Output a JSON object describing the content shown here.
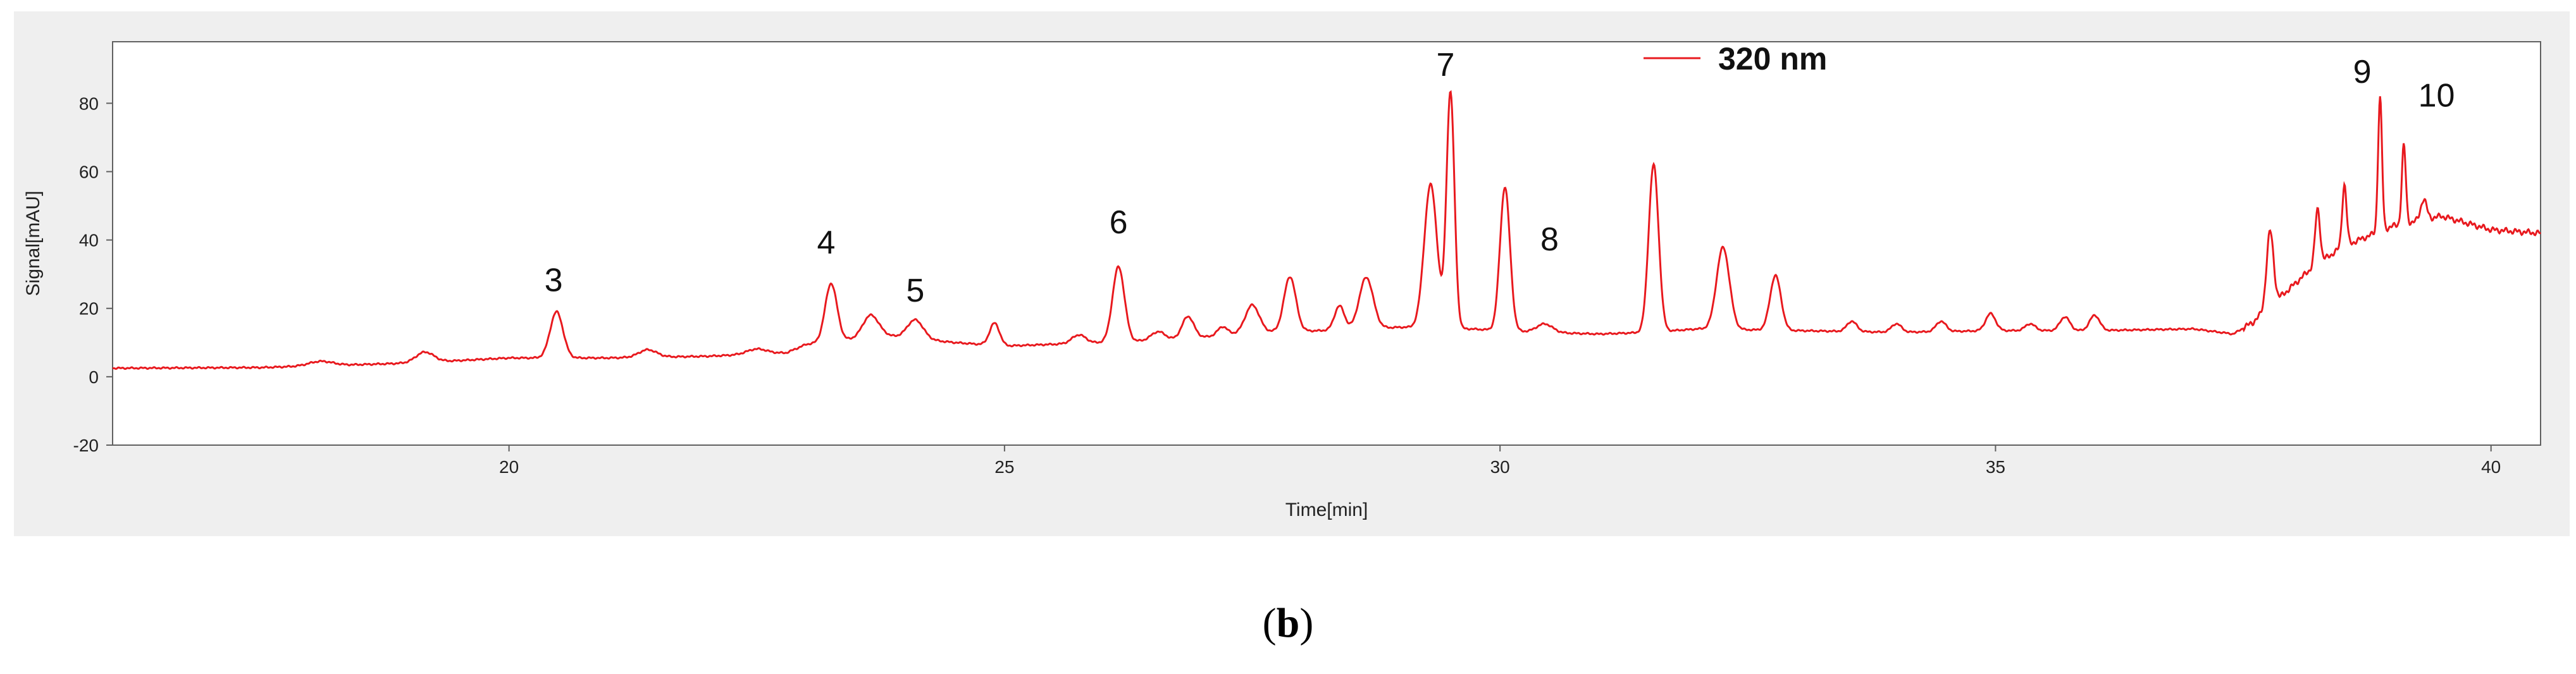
{
  "chart_data": {
    "type": "line",
    "title": "",
    "xlabel": "Time[min]",
    "ylabel": "Signal[mAU]",
    "xlim": [
      16.0,
      40.5
    ],
    "ylim": [
      -20,
      98
    ],
    "xticks": [
      20,
      25,
      30,
      35,
      40
    ],
    "yticks": [
      -20,
      0,
      20,
      40,
      60,
      80
    ],
    "grid": false,
    "legend": {
      "position": "top-center",
      "entries": [
        "320 nm"
      ]
    },
    "series": [
      {
        "name": "320 nm",
        "color": "#e8191e",
        "baseline": [
          [
            16.0,
            2.5
          ],
          [
            17.5,
            2.7
          ],
          [
            19.0,
            4.0
          ],
          [
            20.0,
            5.5
          ],
          [
            21.0,
            5.5
          ],
          [
            22.0,
            6.0
          ],
          [
            22.8,
            7.0
          ],
          [
            23.0,
            9.5
          ],
          [
            23.8,
            12.0
          ],
          [
            24.5,
            10.0
          ],
          [
            25.0,
            9.0
          ],
          [
            26.0,
            10.0
          ],
          [
            26.8,
            11.0
          ],
          [
            27.5,
            13.0
          ],
          [
            28.2,
            13.5
          ],
          [
            29.0,
            14.5
          ],
          [
            29.7,
            14.0
          ],
          [
            30.4,
            13.0
          ],
          [
            31.0,
            12.5
          ],
          [
            31.5,
            13.0
          ],
          [
            32.0,
            14.0
          ],
          [
            33.0,
            13.5
          ],
          [
            34.0,
            13.0
          ],
          [
            35.0,
            13.5
          ],
          [
            36.0,
            13.5
          ],
          [
            37.0,
            14.0
          ],
          [
            37.4,
            12.5
          ],
          [
            37.6,
            16.0
          ],
          [
            37.9,
            24.0
          ],
          [
            38.2,
            32.0
          ],
          [
            38.5,
            38.0
          ],
          [
            39.0,
            44.0
          ],
          [
            39.5,
            47.0
          ],
          [
            40.0,
            43.0
          ],
          [
            40.5,
            42.0
          ]
        ],
        "peaks": [
          {
            "t": 18.1,
            "h": 1.3,
            "w": 0.12
          },
          {
            "t": 19.15,
            "h": 3.0,
            "w": 0.09
          },
          {
            "t": 20.48,
            "h": 13.5,
            "w": 0.065
          },
          {
            "t": 21.4,
            "h": 2.2,
            "w": 0.09
          },
          {
            "t": 22.5,
            "h": 1.5,
            "w": 0.1
          },
          {
            "t": 23.25,
            "h": 17.0,
            "w": 0.06
          },
          {
            "t": 23.65,
            "h": 6.5,
            "w": 0.08
          },
          {
            "t": 24.1,
            "h": 5.5,
            "w": 0.08
          },
          {
            "t": 24.9,
            "h": 6.5,
            "w": 0.05
          },
          {
            "t": 25.75,
            "h": 2.5,
            "w": 0.07
          },
          {
            "t": 26.15,
            "h": 22.0,
            "w": 0.06
          },
          {
            "t": 26.55,
            "h": 2.5,
            "w": 0.07
          },
          {
            "t": 26.85,
            "h": 6.5,
            "w": 0.06
          },
          {
            "t": 27.2,
            "h": 2.5,
            "w": 0.05
          },
          {
            "t": 27.5,
            "h": 8.0,
            "w": 0.07
          },
          {
            "t": 27.88,
            "h": 16.0,
            "w": 0.06
          },
          {
            "t": 28.38,
            "h": 7.0,
            "w": 0.05
          },
          {
            "t": 28.65,
            "h": 15.0,
            "w": 0.07
          },
          {
            "t": 29.3,
            "h": 42.0,
            "w": 0.065
          },
          {
            "t": 29.5,
            "h": 69.0,
            "w": 0.04
          },
          {
            "t": 30.05,
            "h": 42.0,
            "w": 0.05
          },
          {
            "t": 30.45,
            "h": 2.5,
            "w": 0.08
          },
          {
            "t": 31.55,
            "h": 49.0,
            "w": 0.05
          },
          {
            "t": 32.25,
            "h": 24.0,
            "w": 0.065
          },
          {
            "t": 32.78,
            "h": 16.0,
            "w": 0.055
          },
          {
            "t": 33.55,
            "h": 3.0,
            "w": 0.05
          },
          {
            "t": 34.0,
            "h": 2.5,
            "w": 0.05
          },
          {
            "t": 34.45,
            "h": 3.0,
            "w": 0.05
          },
          {
            "t": 34.95,
            "h": 5.0,
            "w": 0.05
          },
          {
            "t": 35.35,
            "h": 2.0,
            "w": 0.05
          },
          {
            "t": 35.7,
            "h": 4.0,
            "w": 0.05
          },
          {
            "t": 36.0,
            "h": 4.5,
            "w": 0.05
          },
          {
            "t": 37.77,
            "h": 22.0,
            "w": 0.035
          },
          {
            "t": 38.25,
            "h": 16.0,
            "w": 0.025
          },
          {
            "t": 38.52,
            "h": 18.0,
            "w": 0.022
          },
          {
            "t": 38.88,
            "h": 39.0,
            "w": 0.02
          },
          {
            "t": 39.12,
            "h": 23.0,
            "w": 0.02
          },
          {
            "t": 39.32,
            "h": 6.0,
            "w": 0.03
          }
        ]
      }
    ],
    "annotations": [
      {
        "label": "3",
        "x": 20.45,
        "y": 25
      },
      {
        "label": "4",
        "x": 23.2,
        "y": 36
      },
      {
        "label": "5",
        "x": 24.1,
        "y": 22
      },
      {
        "label": "6",
        "x": 26.15,
        "y": 42
      },
      {
        "label": "7",
        "x": 29.45,
        "y": 88
      },
      {
        "label": "8",
        "x": 30.5,
        "y": 37
      },
      {
        "label": "9",
        "x": 38.7,
        "y": 86
      },
      {
        "label": "10",
        "x": 39.45,
        "y": 79
      }
    ]
  },
  "figure": {
    "panel_open": "(",
    "panel_letter": "b",
    "panel_close": ")"
  }
}
